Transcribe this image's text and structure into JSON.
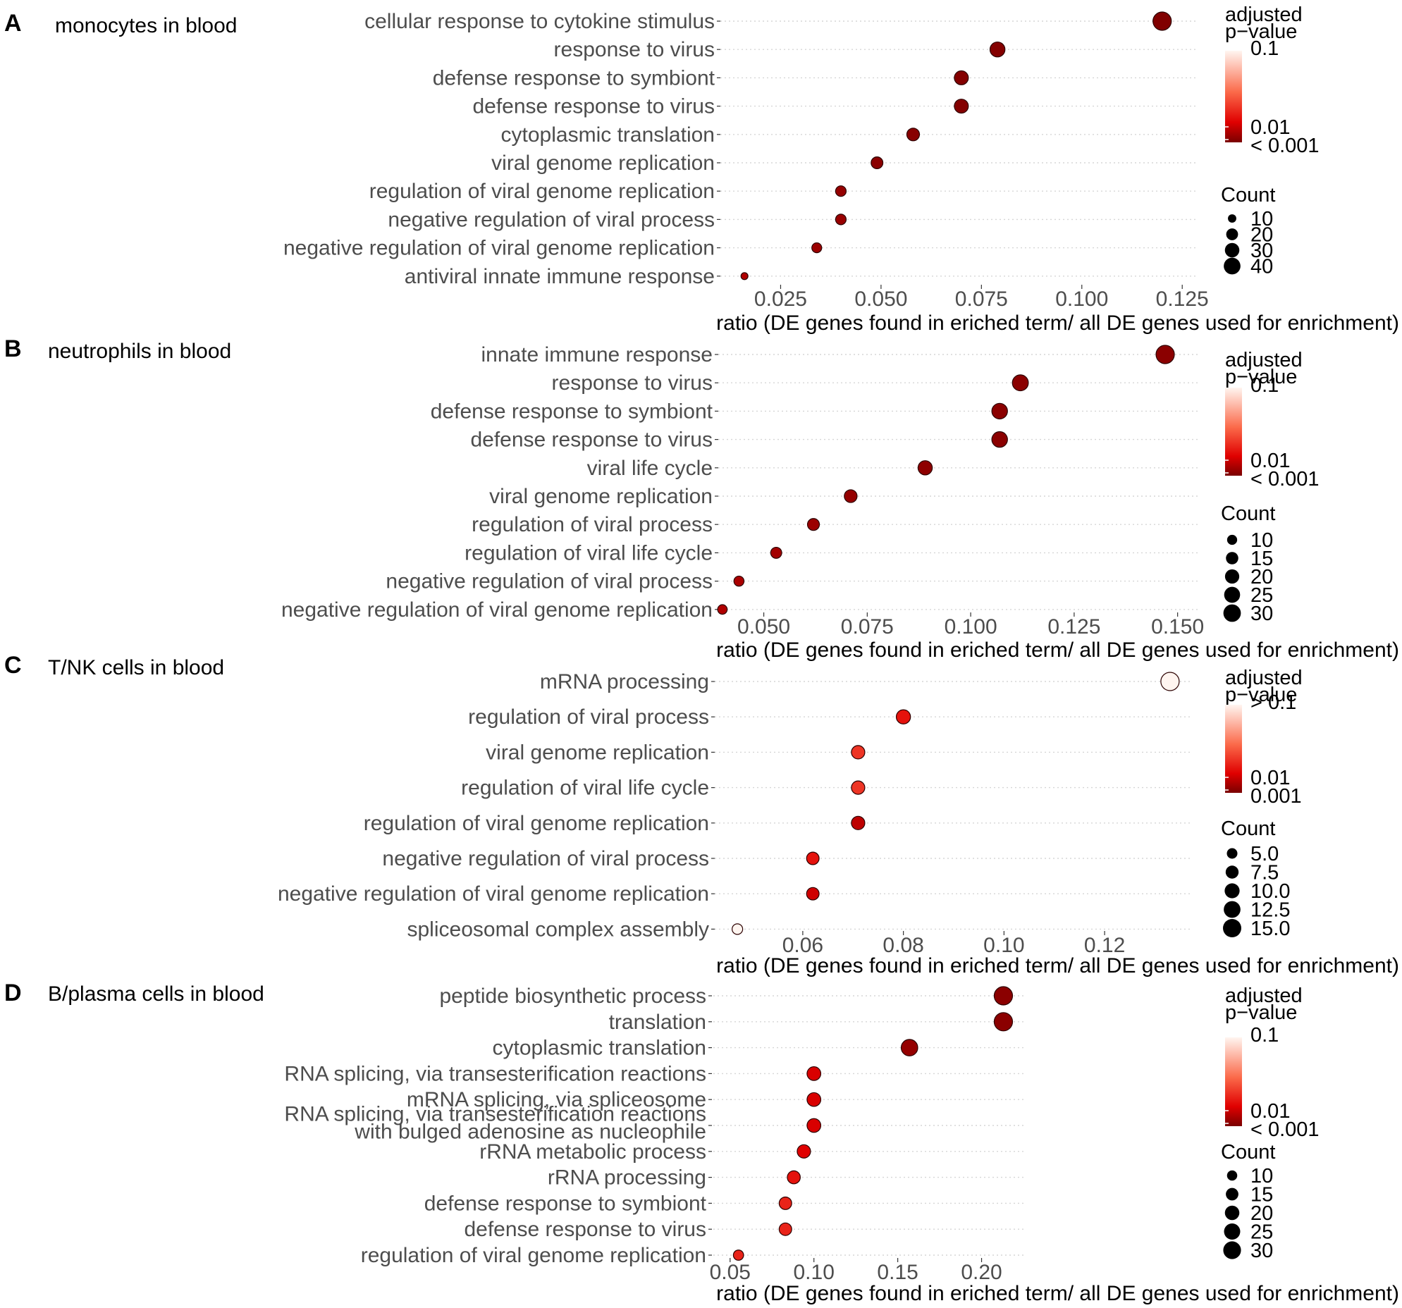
{
  "chart_data": [
    {
      "type": "scatter",
      "panel": "A",
      "title": "monocytes in blood",
      "xlabel": "ratio (DE genes found in eriched term/ all DE genes used for enrichment)",
      "xlim": [
        0.01,
        0.129
      ],
      "xticks": [
        0.025,
        0.05,
        0.075,
        0.1,
        0.125
      ],
      "xtick_labels": [
        "0.025",
        "0.050",
        "0.075",
        "0.100",
        "0.125"
      ],
      "terms": [
        "cellular response to cytokine stimulus",
        "response to virus",
        "defense response to symbiont",
        "defense response to virus",
        "cytoplasmic translation",
        "viral genome replication",
        "regulation of viral genome replication",
        "negative regulation of viral process",
        "negative regulation of viral genome replication",
        "antiviral innate immune response"
      ],
      "ratio": [
        0.12,
        0.079,
        0.07,
        0.07,
        0.058,
        0.049,
        0.04,
        0.04,
        0.034,
        0.016
      ],
      "count": [
        48,
        32,
        28,
        28,
        23,
        20,
        16,
        16,
        14,
        7
      ],
      "color_by": "adjusted p-value",
      "shade": [
        0.02,
        0.03,
        0.03,
        0.03,
        0.04,
        0.05,
        0.08,
        0.09,
        0.1,
        0.16
      ],
      "legend": {
        "color_title": [
          "adjusted",
          "p−value"
        ],
        "color_labels": [
          "0.1",
          "0.01",
          "< 0.001"
        ],
        "size_title": "Count",
        "size_labels": [
          "10",
          "20",
          "30",
          "40"
        ],
        "size_values": [
          10,
          20,
          30,
          40
        ]
      }
    },
    {
      "type": "scatter",
      "panel": "B",
      "title": "neutrophils in blood",
      "xlabel": "ratio (DE genes found in eriched term/ all DE genes used for enrichment)",
      "xlim": [
        0.039,
        0.155
      ],
      "xticks": [
        0.05,
        0.075,
        0.1,
        0.125,
        0.15
      ],
      "xtick_labels": [
        "0.050",
        "0.075",
        "0.100",
        "0.125",
        "0.150"
      ],
      "terms": [
        "innate immune response",
        "response to virus",
        "defense response to symbiont",
        "defense response to virus",
        "viral life cycle",
        "viral genome replication",
        "regulation of viral process",
        "regulation of viral life cycle",
        "negative regulation of viral process",
        "negative regulation of viral genome replication"
      ],
      "ratio": [
        0.147,
        0.112,
        0.107,
        0.107,
        0.089,
        0.071,
        0.062,
        0.053,
        0.044,
        0.04
      ],
      "count": [
        33,
        25,
        24,
        24,
        20,
        16,
        14,
        12,
        10,
        9
      ],
      "color_by": "adjusted p-value",
      "shade": [
        0.05,
        0.05,
        0.05,
        0.05,
        0.06,
        0.08,
        0.1,
        0.12,
        0.14,
        0.16
      ],
      "legend": {
        "color_title": [
          "adjusted",
          "p−value"
        ],
        "color_labels": [
          "0.1",
          "0.01",
          "< 0.001"
        ],
        "size_title": "Count",
        "size_labels": [
          "10",
          "15",
          "20",
          "25",
          "30"
        ],
        "size_values": [
          10,
          15,
          20,
          25,
          30
        ]
      }
    },
    {
      "type": "scatter",
      "panel": "C",
      "title": "T/NK cells in blood",
      "xlabel": "ratio (DE genes found in eriched term/ all DE genes used for enrichment)",
      "xlim": [
        0.0425,
        0.1375
      ],
      "xticks": [
        0.06,
        0.08,
        0.1,
        0.12
      ],
      "xtick_labels": [
        "0.06",
        "0.08",
        "0.10",
        "0.12"
      ],
      "terms": [
        "mRNA processing",
        "regulation of viral process",
        "viral genome replication",
        "regulation of viral life cycle",
        "regulation of viral genome replication",
        "negative regulation of viral process",
        "negative regulation of viral genome replication",
        "spliceosomal complex assembly"
      ],
      "ratio": [
        0.133,
        0.08,
        0.071,
        0.071,
        0.071,
        0.062,
        0.062,
        0.047
      ],
      "count": [
        15,
        9,
        8,
        8,
        8,
        7,
        7,
        5
      ],
      "color_by": "adjusted p-value",
      "shade": [
        1.0,
        0.35,
        0.45,
        0.45,
        0.2,
        0.35,
        0.25,
        1.0
      ],
      "legend": {
        "color_title": [
          "adjusted",
          "p−value"
        ],
        "color_labels": [
          "> 0.1",
          "0.01",
          "0.001"
        ],
        "size_title": "Count",
        "size_labels": [
          "5.0",
          "7.5",
          "10.0",
          "12.5",
          "15.0"
        ],
        "size_values": [
          5,
          7.5,
          10,
          12.5,
          15
        ]
      }
    },
    {
      "type": "scatter",
      "panel": "D",
      "title": "B/plasma cells in blood",
      "xlabel": "ratio (DE genes found in eriched term/ all DE genes used for enrichment)",
      "xlim": [
        0.04,
        0.225
      ],
      "xticks": [
        0.05,
        0.1,
        0.15,
        0.2
      ],
      "xtick_labels": [
        "0.05",
        "0.10",
        "0.15",
        "0.20"
      ],
      "terms": [
        "peptide biosynthetic process",
        "translation",
        "cytoplasmic translation",
        "RNA splicing, via transesterification reactions",
        "mRNA splicing, via spliceosome",
        "RNA splicing, via transesterification reactions\nwith bulged adenosine as nucleophile",
        "rRNA metabolic process",
        "rRNA processing",
        "defense response to symbiont",
        "defense response to virus",
        "regulation of viral genome replication"
      ],
      "ratio": [
        0.213,
        0.213,
        0.157,
        0.1,
        0.1,
        0.1,
        0.094,
        0.088,
        0.083,
        0.083,
        0.055
      ],
      "count": [
        32,
        32,
        26,
        18,
        18,
        18,
        17,
        16,
        15,
        15,
        10
      ],
      "color_by": "adjusted p-value",
      "shade": [
        0.05,
        0.05,
        0.08,
        0.28,
        0.28,
        0.28,
        0.3,
        0.35,
        0.4,
        0.4,
        0.4
      ],
      "legend": {
        "color_title": [
          "adjusted",
          "p−value"
        ],
        "color_labels": [
          "0.1",
          "0.01",
          "< 0.001"
        ],
        "size_title": "Count",
        "size_labels": [
          "10",
          "15",
          "20",
          "25",
          "30"
        ],
        "size_values": [
          10,
          15,
          20,
          25,
          30
        ]
      }
    }
  ]
}
